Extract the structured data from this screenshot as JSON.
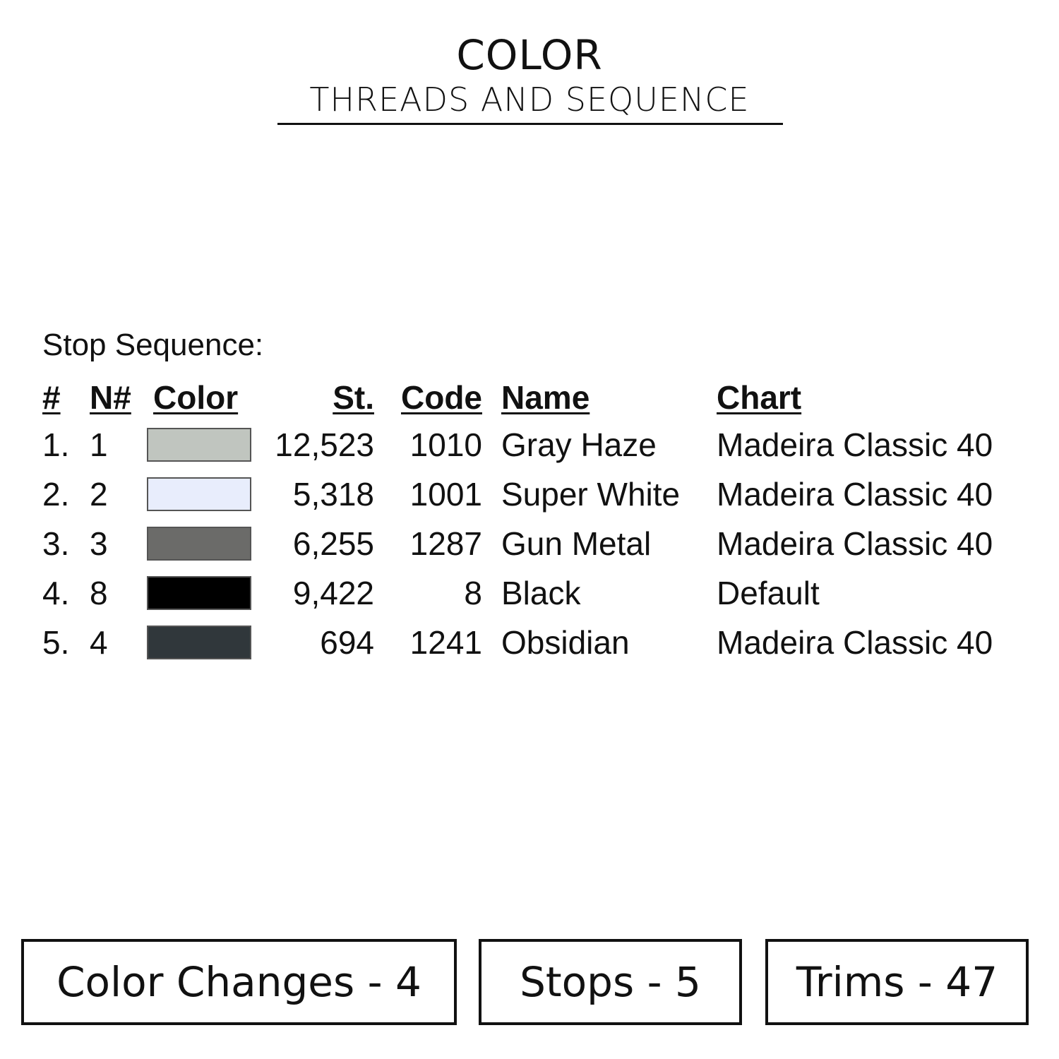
{
  "header": {
    "title": "COLOR",
    "subtitle": "THREADS AND SEQUENCE"
  },
  "section_label": "Stop Sequence:",
  "table": {
    "columns": [
      "#",
      "N#",
      "Color",
      "St.",
      "Code",
      "Name",
      "Chart"
    ],
    "rows": [
      {
        "num": "1.",
        "n": "1",
        "color": "#c0c5bf",
        "st": "12,523",
        "code": "1010",
        "name": "Gray Haze",
        "chart": "Madeira Classic 40"
      },
      {
        "num": "2.",
        "n": "2",
        "color": "#e8edfc",
        "st": "5,318",
        "code": "1001",
        "name": "Super White",
        "chart": "Madeira Classic 40"
      },
      {
        "num": "3.",
        "n": "3",
        "color": "#6b6b69",
        "st": "6,255",
        "code": "1287",
        "name": "Gun Metal",
        "chart": "Madeira Classic 40"
      },
      {
        "num": "4.",
        "n": "8",
        "color": "#000000",
        "st": "9,422",
        "code": "8",
        "name": "Black",
        "chart": "Default"
      },
      {
        "num": "5.",
        "n": "4",
        "color": "#30373b",
        "st": "694",
        "code": "1241",
        "name": "Obsidian",
        "chart": "Madeira Classic 40"
      }
    ]
  },
  "summary": [
    {
      "label": "Color Changes - 4"
    },
    {
      "label": "Stops - 5"
    },
    {
      "label": "Trims - 47"
    }
  ]
}
